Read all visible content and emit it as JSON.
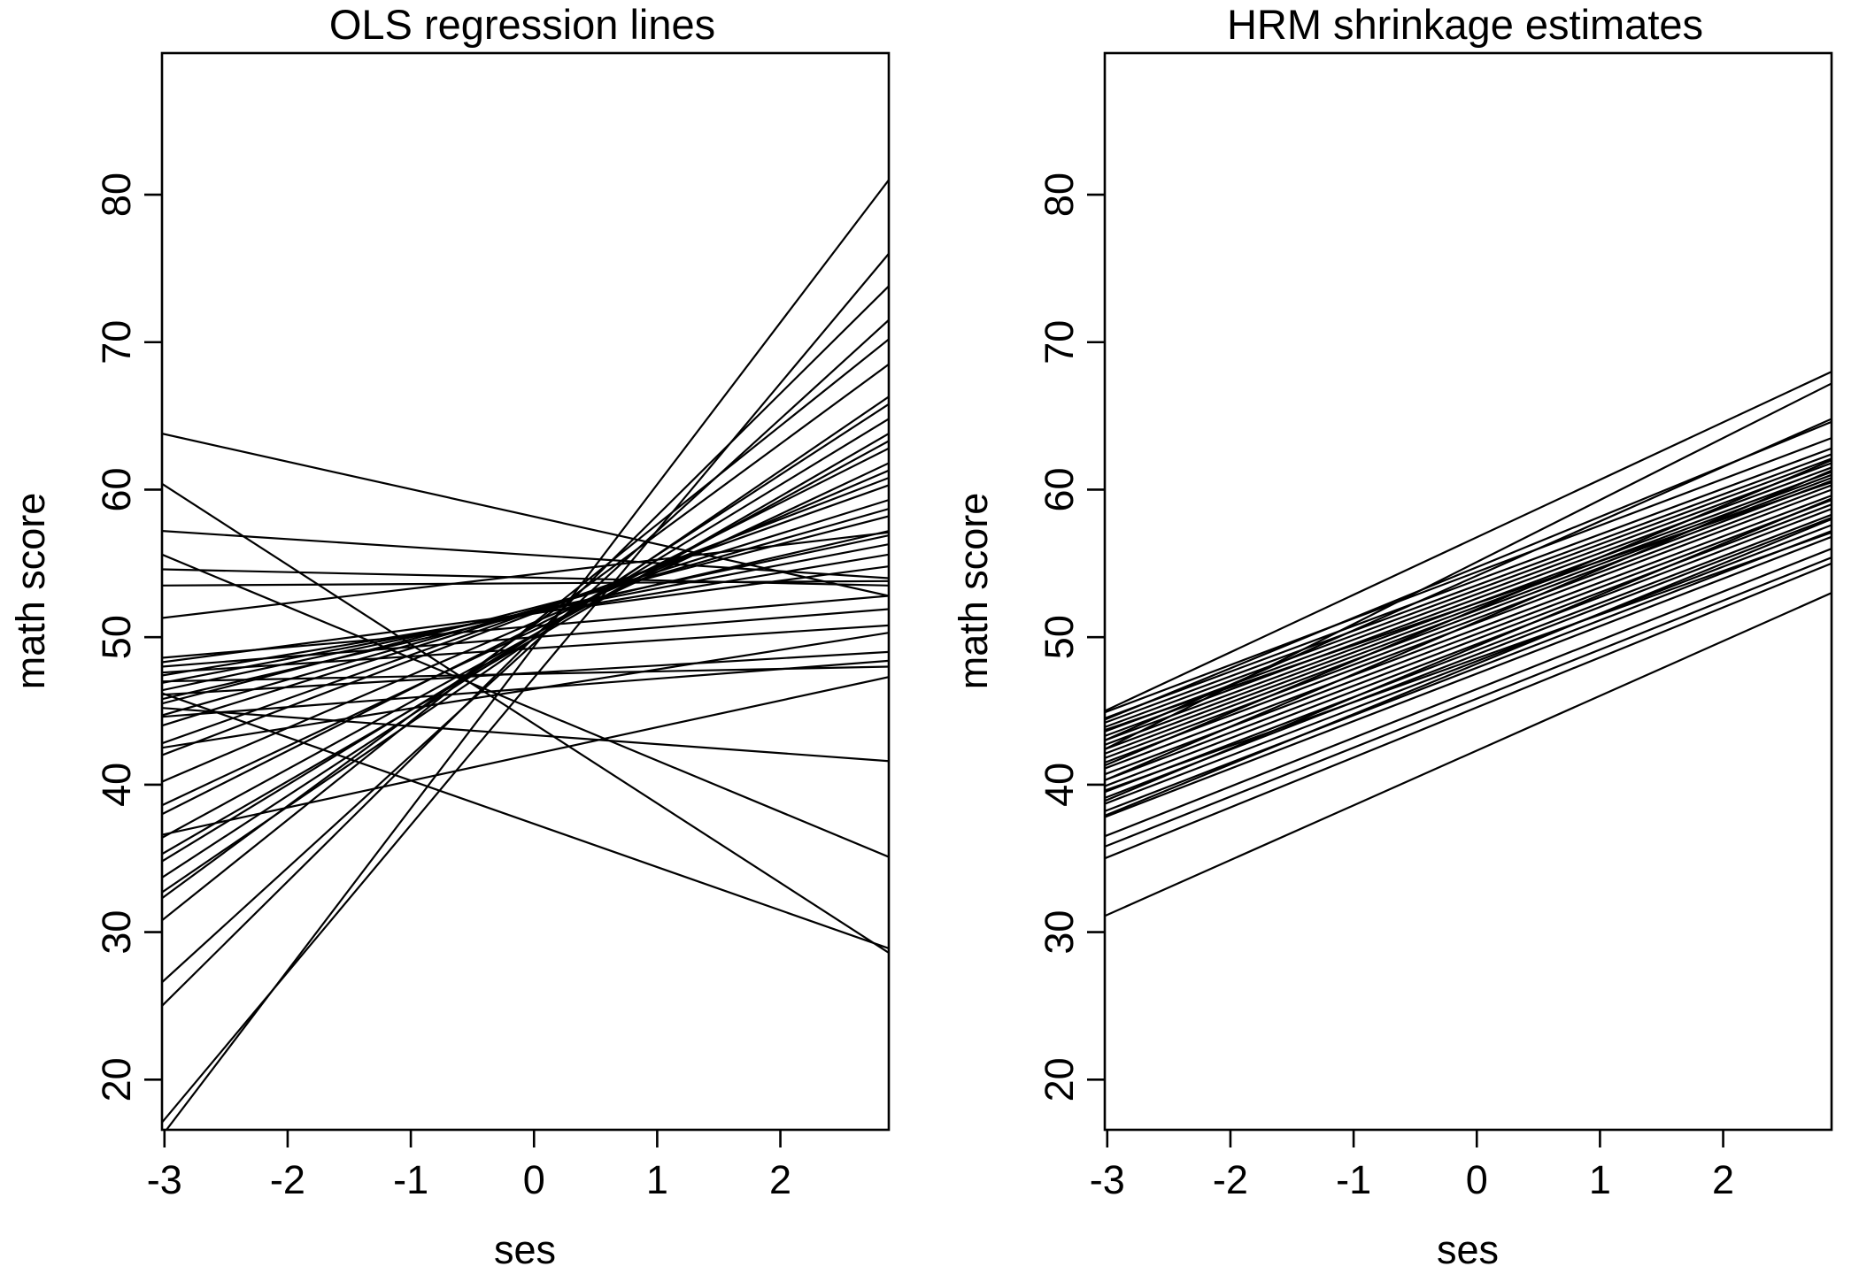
{
  "chart_data": [
    {
      "type": "line",
      "title": "OLS regression lines",
      "xlabel": "ses",
      "ylabel": "math score",
      "xlim": [
        -3.02,
        2.88
      ],
      "ylim": [
        16.6,
        89.6
      ],
      "xticks": [
        -3,
        -2,
        -1,
        0,
        1,
        2
      ],
      "yticks": [
        20,
        30,
        40,
        50,
        60,
        70,
        80
      ],
      "grid": false,
      "segments": [
        [
          16.2,
          81.0
        ],
        [
          17.1,
          76.0
        ],
        [
          25.0,
          73.8
        ],
        [
          26.6,
          71.5
        ],
        [
          30.8,
          70.2
        ],
        [
          32.3,
          68.5
        ],
        [
          32.7,
          66.3
        ],
        [
          33.7,
          65.8
        ],
        [
          34.8,
          64.8
        ],
        [
          35.3,
          63.8
        ],
        [
          36.4,
          63.3
        ],
        [
          38.0,
          62.8
        ],
        [
          38.6,
          61.8
        ],
        [
          40.2,
          61.3
        ],
        [
          42.0,
          60.8
        ],
        [
          42.8,
          60.3
        ],
        [
          44.0,
          59.3
        ],
        [
          44.7,
          58.7
        ],
        [
          45.5,
          58.2
        ],
        [
          45.8,
          57.2
        ],
        [
          46.4,
          56.9
        ],
        [
          46.9,
          56.3
        ],
        [
          47.4,
          55.6
        ],
        [
          48.3,
          54.8
        ],
        [
          48.6,
          52.8
        ],
        [
          36.6,
          47.3
        ],
        [
          42.5,
          50.3
        ],
        [
          44.6,
          48.4
        ],
        [
          46.1,
          49.0
        ],
        [
          47.0,
          48.0
        ],
        [
          47.6,
          50.8
        ],
        [
          48.0,
          51.9
        ],
        [
          51.3,
          57.1
        ],
        [
          53.5,
          53.8
        ],
        [
          54.6,
          53.5
        ],
        [
          57.2,
          54.0
        ],
        [
          63.8,
          52.8
        ],
        [
          60.4,
          28.6
        ],
        [
          55.6,
          35.1
        ],
        [
          46.2,
          28.9
        ],
        [
          45.2,
          41.6
        ]
      ]
    },
    {
      "type": "line",
      "title": "HRM shrinkage estimates",
      "xlabel": "ses",
      "ylabel": "math score",
      "xlim": [
        -3.02,
        2.88
      ],
      "ylim": [
        16.6,
        89.6
      ],
      "xticks": [
        -3,
        -2,
        -1,
        0,
        1,
        2
      ],
      "yticks": [
        20,
        30,
        40,
        50,
        60,
        70,
        80
      ],
      "grid": false,
      "segments": [
        [
          31.1,
          53.0
        ],
        [
          35.0,
          55.0
        ],
        [
          35.8,
          55.4
        ],
        [
          36.5,
          56.0
        ],
        [
          37.8,
          56.8
        ],
        [
          38.2,
          57.2
        ],
        [
          38.7,
          57.6
        ],
        [
          39.1,
          58.1
        ],
        [
          39.5,
          58.3
        ],
        [
          39.9,
          58.7
        ],
        [
          40.3,
          59.0
        ],
        [
          40.7,
          59.3
        ],
        [
          41.1,
          59.6
        ],
        [
          41.5,
          60.0
        ],
        [
          41.8,
          60.3
        ],
        [
          42.1,
          60.6
        ],
        [
          42.4,
          60.8
        ],
        [
          42.7,
          61.0
        ],
        [
          43.0,
          61.2
        ],
        [
          43.3,
          61.5
        ],
        [
          43.6,
          61.8
        ],
        [
          43.9,
          62.1
        ],
        [
          44.2,
          62.4
        ],
        [
          44.5,
          62.8
        ],
        [
          44.9,
          63.5
        ],
        [
          43.0,
          64.8
        ],
        [
          44.4,
          64.6
        ],
        [
          42.4,
          67.2
        ],
        [
          45.0,
          68.0
        ],
        [
          40.3,
          61.3
        ],
        [
          38.9,
          59.4
        ],
        [
          37.9,
          58.0
        ],
        [
          41.3,
          62.0
        ],
        [
          43.7,
          60.5
        ],
        [
          39.6,
          57.1
        ]
      ]
    }
  ]
}
